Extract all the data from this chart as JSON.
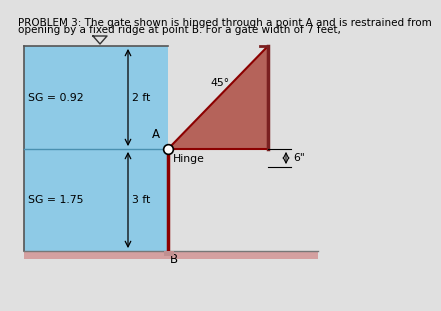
{
  "title_line1": "PROBLEM 3: The gate shown is hinged through a point A and is restrained from",
  "title_line2": "opening by a fixed ridge at point B. For a gate width of 7 feet,",
  "title_fontsize": 7.5,
  "bg_color": "#e0e0e0",
  "fluid_color": "#8ecae6",
  "gate_fill_color": "#b5635a",
  "gate_edge_color": "#8b0000",
  "wall_right_color": "#7a2020",
  "floor_fill_color": "#d4a0a0",
  "separator_color": "#4a90b0",
  "text_color": "#000000",
  "sg_upper": "SG = 0.92",
  "sg_lower": "SG = 1.75",
  "dim_upper": "2 ft",
  "dim_lower": "3 ft",
  "label_A": "A",
  "label_B": "B",
  "label_hinge": "Hinge",
  "label_angle": "45°",
  "label_6in": "6\""
}
